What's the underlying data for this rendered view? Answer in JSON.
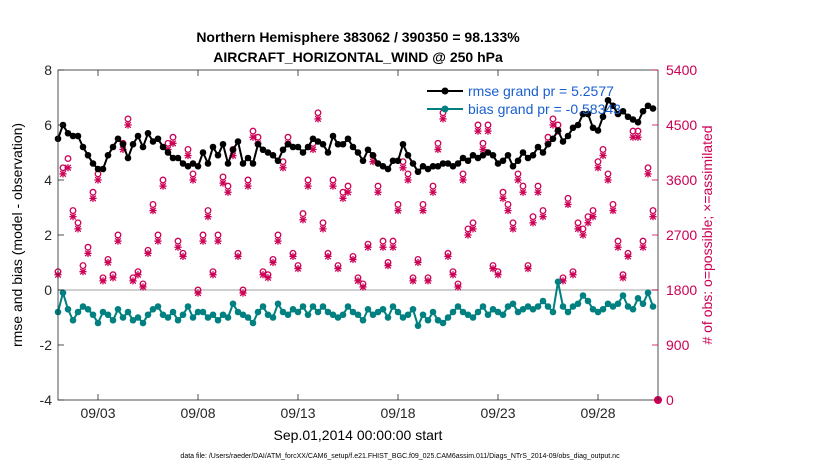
{
  "chart_data": {
    "type": "line",
    "title": "Northern Hemisphere 383062 / 390350 = 98.133%",
    "subtitle": "AIRCRAFT_HORIZONTAL_WIND @ 250 hPa",
    "xlabel": "Sep.01,2014 00:00:00 start",
    "ylabel": "rmse and bias (model - observation)",
    "ylabel_right": "# of obs: o=possible; ×=assimilated",
    "ylim": [
      -4,
      8
    ],
    "ylim_right": [
      0,
      5400
    ],
    "xlim": [
      1.0,
      31.0
    ],
    "x_tick_labels": [
      "09/03",
      "09/08",
      "09/13",
      "09/18",
      "09/23",
      "09/28"
    ],
    "x_ticks": [
      3,
      8,
      13,
      18,
      23,
      28
    ],
    "y_ticks": [
      -4,
      -2,
      0,
      2,
      4,
      6,
      8
    ],
    "y_ticks_right": [
      0,
      900,
      1800,
      2700,
      3600,
      4500,
      5400
    ],
    "zero_line": 0,
    "legend_position": "top-right",
    "colors": {
      "rmse": "#000000",
      "bias": "#008080",
      "obs": "#cc0055",
      "zero": "#c0c0c0"
    },
    "footer": "data file: /Users/raeder/DAI/ATM_forcXX/CAM6_setup/f.e21.FHIST_BGC.f09_025.CAM6assim.011/Diags_NTrS_2014-09/obs_diag_output.nc",
    "series": [
      {
        "name": "rmse grand pr = 5.2577",
        "axis": "left",
        "marker": "dot-line",
        "x": [
          1.0,
          1.25,
          1.5,
          1.75,
          2.0,
          2.25,
          2.5,
          2.75,
          3.0,
          3.25,
          3.5,
          3.75,
          4.0,
          4.25,
          4.5,
          4.75,
          5.0,
          5.25,
          5.5,
          5.75,
          6.0,
          6.25,
          6.5,
          6.75,
          7.0,
          7.25,
          7.5,
          7.75,
          8.0,
          8.25,
          8.5,
          8.75,
          9.0,
          9.25,
          9.5,
          9.75,
          10.0,
          10.25,
          10.5,
          10.75,
          11.0,
          11.25,
          11.5,
          11.75,
          12.0,
          12.25,
          12.5,
          12.75,
          13.0,
          13.25,
          13.5,
          13.75,
          14.0,
          14.25,
          14.5,
          14.75,
          15.0,
          15.25,
          15.5,
          15.75,
          16.0,
          16.25,
          16.5,
          16.75,
          17.0,
          17.25,
          17.5,
          17.75,
          18.0,
          18.25,
          18.5,
          18.75,
          19.0,
          19.25,
          19.5,
          19.75,
          20.0,
          20.25,
          20.5,
          20.75,
          21.0,
          21.25,
          21.5,
          21.75,
          22.0,
          22.25,
          22.5,
          22.75,
          23.0,
          23.25,
          23.5,
          23.75,
          24.0,
          24.25,
          24.5,
          24.75,
          25.0,
          25.25,
          25.5,
          25.75,
          26.0,
          26.25,
          26.5,
          26.75,
          27.0,
          27.25,
          27.5,
          27.75,
          28.0,
          28.25,
          28.5,
          28.75,
          29.0,
          29.25,
          29.5,
          29.75,
          30.0,
          30.25,
          30.5,
          30.75
        ],
        "values": [
          5.5,
          6.0,
          5.7,
          5.6,
          5.6,
          5.2,
          4.9,
          4.6,
          4.4,
          4.4,
          4.9,
          5.2,
          5.5,
          5.3,
          4.8,
          5.3,
          5.6,
          5.2,
          5.7,
          5.4,
          5.5,
          5.2,
          5.0,
          4.8,
          4.8,
          4.6,
          4.5,
          4.6,
          4.5,
          5.0,
          4.6,
          5.2,
          4.9,
          5.3,
          4.6,
          5.1,
          5.4,
          4.6,
          4.8,
          4.6,
          5.3,
          5.1,
          5.0,
          4.9,
          4.7,
          5.1,
          5.3,
          5.2,
          5.2,
          5.0,
          5.2,
          5.5,
          5.4,
          5.3,
          5.0,
          5.6,
          5.3,
          5.3,
          5.5,
          5.2,
          5.0,
          4.7,
          5.1,
          4.9,
          4.6,
          4.5,
          4.4,
          4.7,
          4.7,
          5.3,
          4.9,
          4.6,
          4.3,
          4.5,
          4.4,
          4.5,
          4.5,
          4.6,
          4.6,
          4.5,
          4.6,
          4.8,
          4.7,
          4.9,
          4.8,
          4.9,
          5.0,
          4.9,
          4.6,
          4.7,
          4.9,
          4.5,
          4.7,
          5.0,
          4.8,
          4.9,
          5.2,
          5.0,
          5.3,
          5.5,
          5.8,
          5.4,
          5.6,
          5.9,
          6.0,
          6.4,
          6.4,
          5.9,
          5.8,
          6.3,
          6.9,
          6.7,
          6.4,
          6.5,
          6.3,
          6.2,
          6.1,
          6.5,
          6.7,
          6.6
        ]
      },
      {
        "name": "bias grand pr = -0.58343",
        "axis": "left",
        "marker": "dot-line",
        "x": [
          1.0,
          1.25,
          1.5,
          1.75,
          2.0,
          2.25,
          2.5,
          2.75,
          3.0,
          3.25,
          3.5,
          3.75,
          4.0,
          4.25,
          4.5,
          4.75,
          5.0,
          5.25,
          5.5,
          5.75,
          6.0,
          6.25,
          6.5,
          6.75,
          7.0,
          7.25,
          7.5,
          7.75,
          8.0,
          8.25,
          8.5,
          8.75,
          9.0,
          9.25,
          9.5,
          9.75,
          10.0,
          10.25,
          10.5,
          10.75,
          11.0,
          11.25,
          11.5,
          11.75,
          12.0,
          12.25,
          12.5,
          12.75,
          13.0,
          13.25,
          13.5,
          13.75,
          14.0,
          14.25,
          14.5,
          14.75,
          15.0,
          15.25,
          15.5,
          15.75,
          16.0,
          16.25,
          16.5,
          16.75,
          17.0,
          17.25,
          17.5,
          17.75,
          18.0,
          18.25,
          18.5,
          18.75,
          19.0,
          19.25,
          19.5,
          19.75,
          20.0,
          20.25,
          20.5,
          20.75,
          21.0,
          21.25,
          21.5,
          21.75,
          22.0,
          22.25,
          22.5,
          22.75,
          23.0,
          23.25,
          23.5,
          23.75,
          24.0,
          24.25,
          24.5,
          24.75,
          25.0,
          25.25,
          25.5,
          25.75,
          26.0,
          26.25,
          26.5,
          26.75,
          27.0,
          27.25,
          27.5,
          27.75,
          28.0,
          28.25,
          28.5,
          28.75,
          29.0,
          29.25,
          29.5,
          29.75,
          30.0,
          30.25,
          30.5,
          30.75
        ],
        "values": [
          -0.8,
          -0.1,
          -0.7,
          -1.1,
          -0.8,
          -0.6,
          -0.7,
          -0.9,
          -1.2,
          -0.8,
          -0.9,
          -1.1,
          -0.7,
          -1.0,
          -0.8,
          -1.1,
          -1.0,
          -1.2,
          -0.9,
          -0.7,
          -0.6,
          -0.9,
          -1.0,
          -0.8,
          -1.1,
          -0.9,
          -0.6,
          -1.0,
          -0.8,
          -0.8,
          -1.0,
          -0.9,
          -1.1,
          -0.9,
          -1.0,
          -0.5,
          -0.8,
          -0.9,
          -1.0,
          -1.2,
          -0.8,
          -0.6,
          -0.9,
          -1.0,
          -0.5,
          -0.8,
          -0.9,
          -0.7,
          -0.8,
          -0.6,
          -0.9,
          -0.6,
          -0.8,
          -0.6,
          -0.8,
          -0.9,
          -1.0,
          -0.9,
          -0.6,
          -0.8,
          -0.9,
          -1.1,
          -0.7,
          -0.9,
          -0.8,
          -0.7,
          -1.0,
          -0.6,
          -0.8,
          -1.0,
          -0.9,
          -0.7,
          -1.3,
          -0.9,
          -1.1,
          -0.8,
          -1.1,
          -1.2,
          -1.0,
          -0.8,
          -0.6,
          -0.8,
          -0.9,
          -1.0,
          -0.8,
          -0.6,
          -0.9,
          -0.7,
          -0.8,
          -0.9,
          -0.6,
          -0.5,
          -0.8,
          -0.7,
          -0.6,
          -0.7,
          -0.6,
          -0.4,
          -0.6,
          -0.8,
          0.3,
          -0.6,
          -0.8,
          -0.6,
          -0.5,
          -0.2,
          -0.4,
          -0.7,
          -0.8,
          -0.7,
          -0.5,
          -0.6,
          -0.5,
          -0.2,
          -0.6,
          -0.7,
          -0.3,
          -0.5,
          -0.1,
          -0.6
        ]
      },
      {
        "name": "possible",
        "axis": "right",
        "marker": "circle",
        "x": [
          1.0,
          1.25,
          1.5,
          1.75,
          2.0,
          2.25,
          2.5,
          2.75,
          3.0,
          3.25,
          3.5,
          3.75,
          4.0,
          4.25,
          4.5,
          4.75,
          5.0,
          5.25,
          5.5,
          5.75,
          6.0,
          6.25,
          6.5,
          6.75,
          7.0,
          7.25,
          7.5,
          7.75,
          8.0,
          8.25,
          8.5,
          8.75,
          9.0,
          9.25,
          9.5,
          9.75,
          10.0,
          10.25,
          10.5,
          10.75,
          11.0,
          11.25,
          11.5,
          11.75,
          12.0,
          12.25,
          12.5,
          12.75,
          13.0,
          13.25,
          13.5,
          13.75,
          14.0,
          14.25,
          14.5,
          14.75,
          15.0,
          15.25,
          15.5,
          15.75,
          16.0,
          16.25,
          16.5,
          16.75,
          17.0,
          17.25,
          17.5,
          17.75,
          18.0,
          18.25,
          18.5,
          18.75,
          19.0,
          19.25,
          19.5,
          19.75,
          20.0,
          20.25,
          20.5,
          20.75,
          21.0,
          21.25,
          21.5,
          21.75,
          22.0,
          22.25,
          22.5,
          22.75,
          23.0,
          23.25,
          23.5,
          23.75,
          24.0,
          24.25,
          24.5,
          24.75,
          25.0,
          25.25,
          25.5,
          25.75,
          26.0,
          26.25,
          26.5,
          26.75,
          27.0,
          27.25,
          27.5,
          27.75,
          28.0,
          28.25,
          28.5,
          28.75,
          29.0,
          29.25,
          29.5,
          29.75,
          30.0,
          30.25,
          30.5,
          30.75
        ],
        "values": [
          2100,
          3800,
          3950,
          3100,
          2900,
          2200,
          2500,
          3400,
          3700,
          2000,
          2300,
          2050,
          2700,
          4200,
          4600,
          2000,
          2100,
          1900,
          2450,
          3200,
          2700,
          3600,
          4200,
          4300,
          2600,
          2400,
          4100,
          3700,
          1800,
          2700,
          3100,
          2100,
          2700,
          3650,
          3500,
          4100,
          2400,
          1800,
          3600,
          4400,
          4300,
          2100,
          2050,
          2300,
          2700,
          3900,
          4300,
          2400,
          2200,
          3050,
          3600,
          4200,
          4700,
          2900,
          2400,
          3600,
          2200,
          3400,
          3500,
          2350,
          2000,
          1900,
          2550,
          4000,
          3500,
          2600,
          2250,
          2600,
          3200,
          3900,
          3700,
          2000,
          2300,
          3200,
          2000,
          3500,
          4200,
          4700,
          2400,
          2100,
          1900,
          3700,
          2800,
          2900,
          4500,
          4200,
          4500,
          2200,
          2100,
          3400,
          3200,
          2900,
          3700,
          3500,
          2200,
          3000,
          3500,
          3100,
          4300,
          4600,
          4500,
          2000,
          3300,
          2100,
          2900,
          2800,
          3000,
          3100,
          3900,
          4100,
          3700,
          3200,
          2600,
          2050,
          2400,
          4400,
          4400,
          2600,
          3800,
          3100
        ]
      },
      {
        "name": "assimilated",
        "axis": "right",
        "marker": "x",
        "x": [
          1.0,
          1.25,
          1.5,
          1.75,
          2.0,
          2.25,
          2.5,
          2.75,
          3.0,
          3.25,
          3.5,
          3.75,
          4.0,
          4.25,
          4.5,
          4.75,
          5.0,
          5.25,
          5.5,
          5.75,
          6.0,
          6.25,
          6.5,
          6.75,
          7.0,
          7.25,
          7.5,
          7.75,
          8.0,
          8.25,
          8.5,
          8.75,
          9.0,
          9.25,
          9.5,
          9.75,
          10.0,
          10.25,
          10.5,
          10.75,
          11.0,
          11.25,
          11.5,
          11.75,
          12.0,
          12.25,
          12.5,
          12.75,
          13.0,
          13.25,
          13.5,
          13.75,
          14.0,
          14.25,
          14.5,
          14.75,
          15.0,
          15.25,
          15.5,
          15.75,
          16.0,
          16.25,
          16.5,
          16.75,
          17.0,
          17.25,
          17.5,
          17.75,
          18.0,
          18.25,
          18.5,
          18.75,
          19.0,
          19.25,
          19.5,
          19.75,
          20.0,
          20.25,
          20.5,
          20.75,
          21.0,
          21.25,
          21.5,
          21.75,
          22.0,
          22.25,
          22.5,
          22.75,
          23.0,
          23.25,
          23.5,
          23.75,
          24.0,
          24.25,
          24.5,
          24.75,
          25.0,
          25.25,
          25.5,
          25.75,
          26.0,
          26.25,
          26.5,
          26.75,
          27.0,
          27.25,
          27.5,
          27.75,
          28.0,
          28.25,
          28.5,
          28.75,
          29.0,
          29.25,
          29.5,
          29.75,
          30.0,
          30.25,
          30.5,
          30.75
        ],
        "values": [
          2050,
          3700,
          3800,
          3000,
          2800,
          2100,
          2400,
          3300,
          3600,
          1950,
          2250,
          2000,
          2600,
          4100,
          4500,
          1950,
          2050,
          1850,
          2400,
          3100,
          2600,
          3500,
          4100,
          4200,
          2500,
          2350,
          4000,
          3600,
          1750,
          2600,
          3000,
          2050,
          2600,
          3550,
          3400,
          4000,
          2350,
          1750,
          3500,
          4300,
          4200,
          2050,
          2000,
          2250,
          2600,
          3800,
          4200,
          2350,
          2150,
          2950,
          3500,
          4100,
          4600,
          2800,
          2350,
          3500,
          2150,
          3300,
          3400,
          2300,
          1950,
          1850,
          2500,
          3900,
          3400,
          2500,
          2200,
          2500,
          3100,
          3800,
          3600,
          1950,
          2250,
          3100,
          1950,
          3400,
          4100,
          4600,
          2350,
          2050,
          1850,
          3600,
          2700,
          2800,
          4400,
          4100,
          4400,
          2150,
          2050,
          3300,
          3100,
          2800,
          3600,
          3400,
          2150,
          2900,
          3400,
          3000,
          4200,
          4500,
          4400,
          1950,
          3200,
          2050,
          2800,
          2700,
          2900,
          3000,
          3800,
          4000,
          3600,
          3100,
          2500,
          2000,
          2350,
          4300,
          4300,
          2500,
          3700,
          3000
        ]
      }
    ],
    "point_annotations": [
      {
        "series": "possible",
        "x": 31.0,
        "value": 0
      }
    ]
  }
}
